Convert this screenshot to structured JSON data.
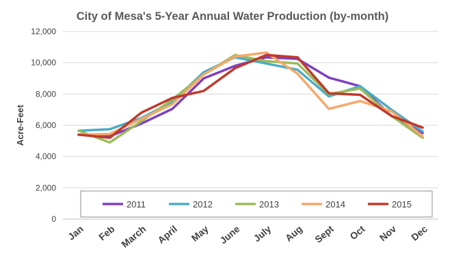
{
  "chart_data": {
    "type": "line",
    "title": "City of Mesa's 5-Year Annual Water Production (by-month)",
    "xlabel": "",
    "ylabel": "Acre-Feet",
    "ylim": [
      0,
      12000
    ],
    "yticks": [
      0,
      2000,
      4000,
      6000,
      8000,
      10000,
      12000
    ],
    "ytick_labels": [
      "0",
      "2,000",
      "4,000",
      "6,000",
      "8,000",
      "10,000",
      "12,000"
    ],
    "grid": true,
    "legend_position": "bottom-inside",
    "categories": [
      "Jan",
      "Feb",
      "March",
      "April",
      "May",
      "June",
      "July",
      "Aug",
      "Sept",
      "Oct",
      "Nov",
      "Dec"
    ],
    "series": [
      {
        "name": "2011",
        "color": "#7f3fbf",
        "values": [
          5400,
          5300,
          6100,
          7050,
          9000,
          9800,
          10350,
          10250,
          9050,
          8500,
          6600,
          5500
        ]
      },
      {
        "name": "2012",
        "color": "#4bacc6",
        "values": [
          5650,
          5750,
          6450,
          7500,
          9400,
          10350,
          9950,
          9550,
          7850,
          8500,
          7000,
          5600
        ]
      },
      {
        "name": "2013",
        "color": "#9bbb59",
        "values": [
          5650,
          4900,
          6250,
          7650,
          9250,
          10500,
          10100,
          9950,
          8000,
          8350,
          6600,
          5200
        ]
      },
      {
        "name": "2014",
        "color": "#f7a86a",
        "values": [
          5400,
          5450,
          6400,
          7350,
          9250,
          10400,
          10650,
          9300,
          7050,
          7550,
          6900,
          5300
        ]
      },
      {
        "name": "2015",
        "color": "#c0392b",
        "values": [
          5400,
          5200,
          6800,
          7750,
          8200,
          9650,
          10500,
          10350,
          8050,
          7950,
          6600,
          5850
        ]
      }
    ]
  }
}
